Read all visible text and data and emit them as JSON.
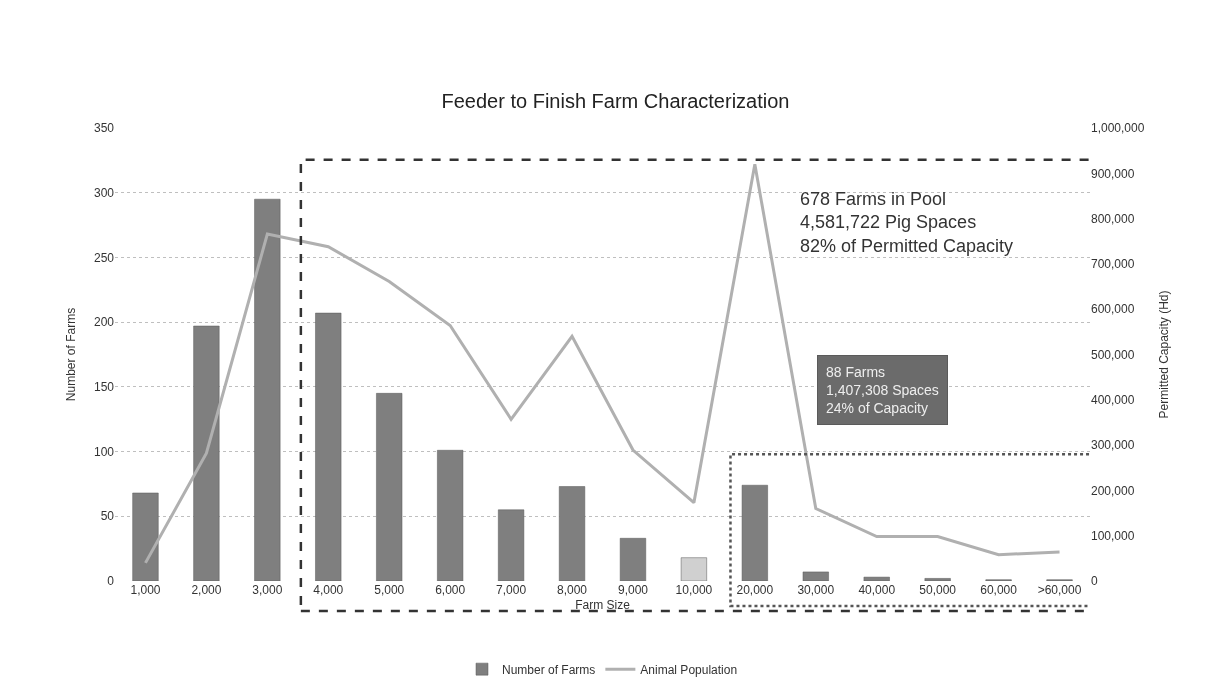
{
  "chart_data": {
    "type": "bar",
    "title": "Feeder to Finish Farm Characterization",
    "xlabel": "Farm Size",
    "ylabel": "Number of Farms",
    "y2label": "Permitted Capacity (Hd)",
    "categories": [
      "1,000",
      "2,000",
      "3,000",
      "4,000",
      "5,000",
      "6,000",
      "7,000",
      "8,000",
      "9,000",
      "10,000",
      "20,000",
      "30,000",
      "40,000",
      "50,000",
      "60,000",
      ">60,000"
    ],
    "series": [
      {
        "name": "Number of Farms",
        "colors": [
          "#7f7f7f",
          "#7f7f7f",
          "#7f7f7f",
          "#7f7f7f",
          "#7f7f7f",
          "#7f7f7f",
          "#7f7f7f",
          "#7f7f7f",
          "#7f7f7f",
          "#d0d0d0",
          "#7f7f7f",
          "#7f7f7f",
          "#7f7f7f",
          "#7f7f7f",
          "#7f7f7f",
          "#7f7f7f"
        ],
        "values": [
          68,
          197,
          295,
          207,
          145,
          101,
          55,
          73,
          33,
          18,
          74,
          7,
          3,
          2,
          1,
          1
        ]
      },
      {
        "name": "Animal Population",
        "type": "line",
        "axis": "y2",
        "color": "#b0b0b0",
        "values": [
          40000,
          282000,
          766000,
          738000,
          661000,
          564000,
          357000,
          540000,
          289000,
          173000,
          920000,
          160000,
          98000,
          98000,
          58000,
          64000
        ]
      }
    ],
    "ylim": [
      0,
      350
    ],
    "yticks": [
      0,
      50,
      100,
      150,
      200,
      250,
      300,
      350
    ],
    "y2lim": [
      0,
      1000000
    ],
    "y2ticks": [
      {
        "value": 0,
        "label": "0"
      },
      {
        "value": 100000,
        "label": "100,000"
      },
      {
        "value": 200000,
        "label": "200,000"
      },
      {
        "value": 300000,
        "label": "300,000"
      },
      {
        "value": 400000,
        "label": "400,000"
      },
      {
        "value": 500000,
        "label": "500,000"
      },
      {
        "value": 600000,
        "label": "600,000"
      },
      {
        "value": 700000,
        "label": "700,000"
      },
      {
        "value": 800000,
        "label": "800,000"
      },
      {
        "value": 900000,
        "label": "900,000"
      },
      {
        "value": 1000000,
        "label": "1,000,000"
      }
    ],
    "annotations": [
      "678 Farms in Pool\n4,581,722 Pig Spaces\n82% of Permitted Capacity",
      "88 Farms\n1,407,308 Spaces\n24% of Capacity"
    ],
    "grid": "y",
    "legend": "bottom",
    "marker": "none",
    "line_style": "solid"
  }
}
